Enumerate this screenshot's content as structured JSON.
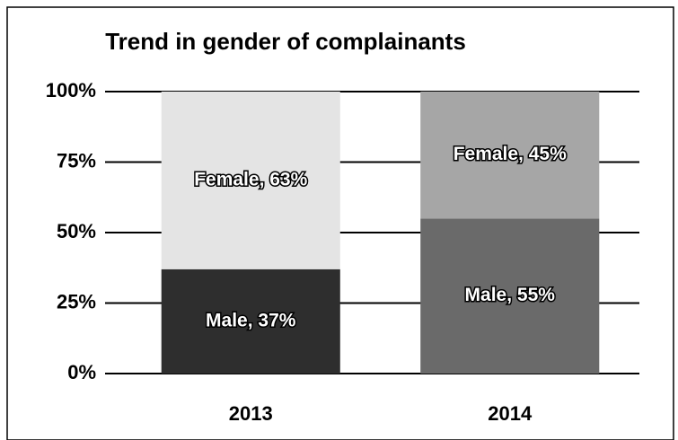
{
  "chart_data": {
    "type": "stacked_bar",
    "title": "Trend in gender of complainants",
    "categories": [
      "2013",
      "2014"
    ],
    "series": [
      {
        "name": "Male",
        "colors": [
          "#2e2e2e",
          "#6a6a6a"
        ],
        "values": [
          37,
          55
        ],
        "value_labels": [
          "Male, 37%",
          "Male, 55%"
        ]
      },
      {
        "name": "Female",
        "colors": [
          "#e4e4e4",
          "#a6a6a6"
        ],
        "values": [
          63,
          45
        ],
        "value_labels": [
          "Female, 63%",
          "Female, 45%"
        ]
      }
    ],
    "ylim": [
      0,
      100
    ],
    "yticks": [
      {
        "value": 0,
        "label": "0%"
      },
      {
        "value": 25,
        "label": "25%"
      },
      {
        "value": 50,
        "label": "50%"
      },
      {
        "value": 75,
        "label": "75%"
      },
      {
        "value": 100,
        "label": "100%"
      }
    ],
    "grid": true
  }
}
